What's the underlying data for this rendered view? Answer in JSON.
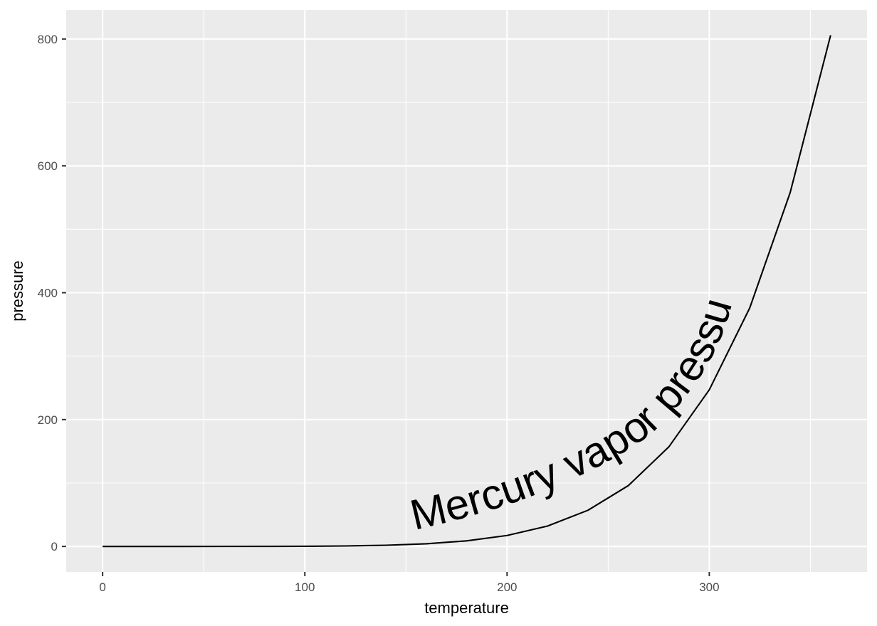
{
  "chart_data": {
    "type": "line",
    "xlabel": "temperature",
    "ylabel": "pressure",
    "xlim": [
      -18,
      378
    ],
    "ylim": [
      -40.2,
      845.8
    ],
    "x_major_ticks": [
      0,
      100,
      200,
      300
    ],
    "x_minor_ticks": [
      50,
      150,
      250,
      350
    ],
    "y_major_ticks": [
      0,
      200,
      400,
      600,
      800
    ],
    "y_minor_ticks": [
      100,
      300,
      500,
      700
    ],
    "x_tick_labels": [
      "0",
      "100",
      "200",
      "300"
    ],
    "y_tick_labels": [
      "0",
      "200",
      "400",
      "600",
      "800"
    ],
    "grid": true,
    "panel_color": "#ebebeb",
    "line_color": "#000000",
    "series": [
      {
        "x": [
          0,
          20,
          40,
          60,
          80,
          100,
          120,
          140,
          160,
          180,
          200,
          220,
          240,
          260,
          280,
          300,
          320,
          340,
          360
        ],
        "y": [
          0.0002,
          0.0012,
          0.006,
          0.03,
          0.09,
          0.27,
          0.75,
          1.85,
          4.2,
          8.8,
          17.3,
          32.1,
          57,
          96,
          157,
          247,
          376,
          558,
          806
        ]
      }
    ],
    "annotations": [
      {
        "text": "Mercury vapor pressure",
        "path": "along-curve"
      }
    ]
  }
}
